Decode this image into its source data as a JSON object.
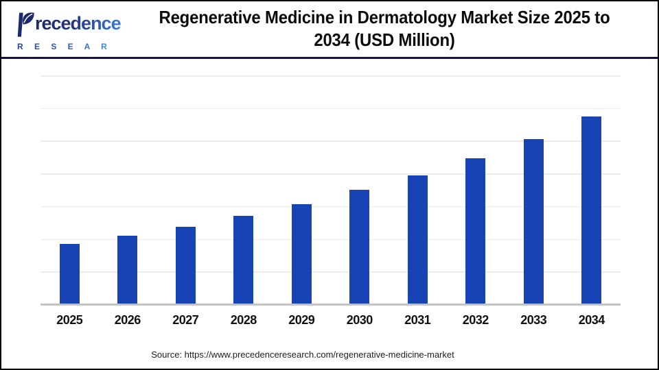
{
  "header": {
    "logo": {
      "brand": "Precedence",
      "brand_rest": "recedence",
      "subbrand": "R E S E A R C H",
      "icon": "leaf-p-icon"
    },
    "title": "Regenerative Medicine in Dermatology Market Size 2025 to 2034 (USD Million)",
    "title_lines": {
      "line1": "Regenerative Medicine in Dermatology Market Size 2025 to",
      "line2": "2034 (USD Million)"
    }
  },
  "chart_data": {
    "type": "bar",
    "title": "Regenerative Medicine in Dermatology Market Size 2025 to 2034 (USD Million)",
    "unit": "USD Million",
    "categories": [
      "2025",
      "2026",
      "2027",
      "2028",
      "2029",
      "2030",
      "2031",
      "2032",
      "2033",
      "2034"
    ],
    "values_relative": [
      1.84,
      2.1,
      2.37,
      2.71,
      3.06,
      3.49,
      3.95,
      4.46,
      5.05,
      5.74
    ],
    "ylim_relative": [
      0,
      7
    ],
    "y_axis_tick_labels_visible": false,
    "data_labels_visible": false,
    "gridline_count": 7,
    "grid": "horizontal",
    "legend": "none",
    "bar_color": "#1843b5"
  },
  "footer": {
    "source_text": "Source: https://www.precedenceresearch.com/regenerative-medicine-market"
  },
  "colors": {
    "bar": "#1843b5",
    "header_rule": "#12123e",
    "outer_border": "#000000",
    "axis_line": "#c3c3c3",
    "gridline": "#ececec",
    "logo_navy": "#1d2866",
    "logo_blue": "#3b79de"
  }
}
